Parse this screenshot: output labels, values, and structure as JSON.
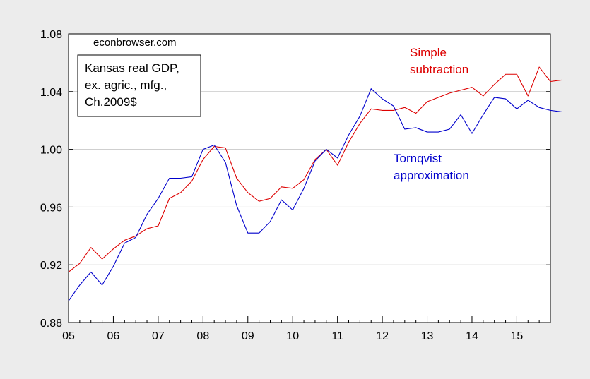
{
  "chart_data": {
    "type": "line",
    "source_note": "econbrowser.com",
    "box_lines": [
      "Kansas real GDP,",
      "ex. agric., mfg.,",
      "Ch.2009$"
    ],
    "x_tick_labels": [
      "05",
      "06",
      "07",
      "08",
      "09",
      "10",
      "11",
      "12",
      "13",
      "14",
      "15"
    ],
    "x_start_year": 2005,
    "x_range": [
      2005.0,
      2015.75
    ],
    "ylim": [
      0.88,
      1.08
    ],
    "y_ticks": [
      0.88,
      0.92,
      0.96,
      1.0,
      1.04,
      1.08
    ],
    "y_tick_labels": [
      "0.88",
      "0.92",
      "0.96",
      "1.00",
      "1.04",
      "1.08"
    ],
    "grid": "horizontal",
    "colors": {
      "simple": "#dd0000",
      "tornqvist": "#0000cc",
      "grid": "#c8c8c8",
      "plot_bg": "#ffffff",
      "frame_bg": "#ececec"
    },
    "series": [
      {
        "name": "Simple subtraction",
        "label_lines": [
          "Simple",
          "subtraction"
        ],
        "color": "#dd0000",
        "values": [
          0.915,
          0.921,
          0.932,
          0.924,
          0.931,
          0.937,
          0.94,
          0.945,
          0.947,
          0.966,
          0.97,
          0.978,
          0.993,
          1.002,
          1.001,
          0.98,
          0.97,
          0.964,
          0.966,
          0.974,
          0.973,
          0.979,
          0.993,
          1.0,
          0.989,
          1.005,
          1.018,
          1.028,
          1.027,
          1.027,
          1.029,
          1.025,
          1.033,
          1.036,
          1.039,
          1.041,
          1.043,
          1.037,
          1.045,
          1.052,
          1.052,
          1.037,
          1.057,
          1.047,
          1.048
        ]
      },
      {
        "name": "Tornqvist approximation",
        "label_lines": [
          "Tornqvist",
          "approximation"
        ],
        "color": "#0000cc",
        "values": [
          0.895,
          0.906,
          0.915,
          0.906,
          0.919,
          0.935,
          0.939,
          0.955,
          0.966,
          0.98,
          0.98,
          0.981,
          1.0,
          1.003,
          0.991,
          0.961,
          0.942,
          0.942,
          0.95,
          0.965,
          0.958,
          0.973,
          0.992,
          1.0,
          0.994,
          1.01,
          1.023,
          1.042,
          1.035,
          1.03,
          1.014,
          1.015,
          1.012,
          1.012,
          1.014,
          1.024,
          1.011,
          1.024,
          1.036,
          1.035,
          1.028,
          1.034,
          1.029,
          1.027,
          1.026
        ]
      }
    ]
  }
}
